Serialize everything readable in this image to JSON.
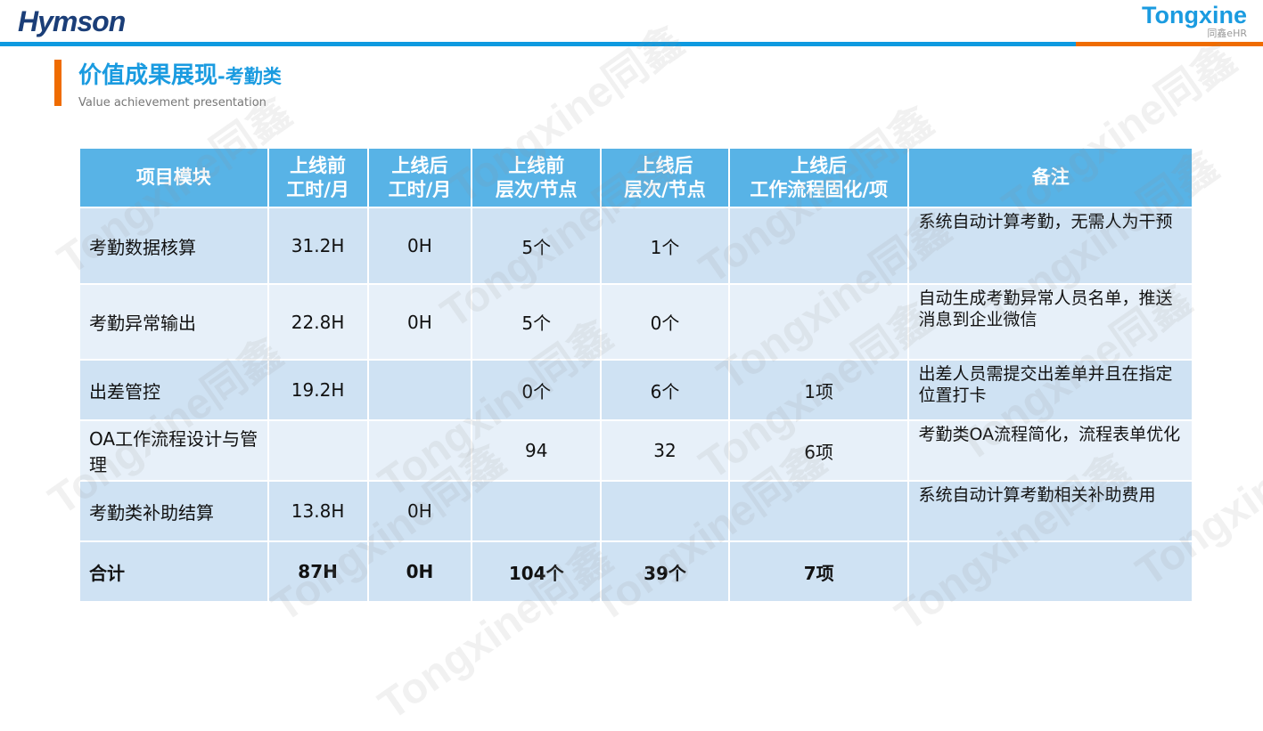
{
  "header": {
    "left_logo": "Hymson",
    "right_logo": "Tongxine",
    "right_logo_sub": "同鑫eHR"
  },
  "title": {
    "main": "价值成果展现",
    "suffix": "-考勤类",
    "subtitle": "Value achievement presentation"
  },
  "watermark": "Tongxine同鑫",
  "colors": {
    "accent_blue": "#1a9be0",
    "accent_orange": "#ef6c00",
    "header_bg": "#58b3e6"
  },
  "table": {
    "headers": [
      "项目模块",
      "上线前\n工时/月",
      "上线后\n工时/月",
      "上线前\n层次/节点",
      "上线后\n层次/节点",
      "上线后\n工作流程固化/项",
      "备注"
    ],
    "rows": [
      [
        "考勤数据核算",
        "31.2H",
        "0H",
        "5个",
        "1个",
        "",
        "系统自动计算考勤，无需人为干预"
      ],
      [
        "考勤异常输出",
        "22.8H",
        "0H",
        "5个",
        "0个",
        "",
        "自动生成考勤异常人员名单，推送消息到企业微信"
      ],
      [
        "出差管控",
        "19.2H",
        "",
        "0个",
        "6个",
        "1项",
        "出差人员需提交出差单并且在指定位置打卡"
      ],
      [
        "OA工作流程设计与管理",
        "",
        "",
        "94",
        "32",
        "6项",
        "考勤类OA流程简化，流程表单优化"
      ],
      [
        "考勤类补助结算",
        "13.8H",
        "0H",
        "",
        "",
        "",
        "系统自动计算考勤相关补助费用"
      ],
      [
        "合计",
        "87H",
        "0H",
        "104个",
        "39个",
        "7项",
        ""
      ]
    ]
  }
}
